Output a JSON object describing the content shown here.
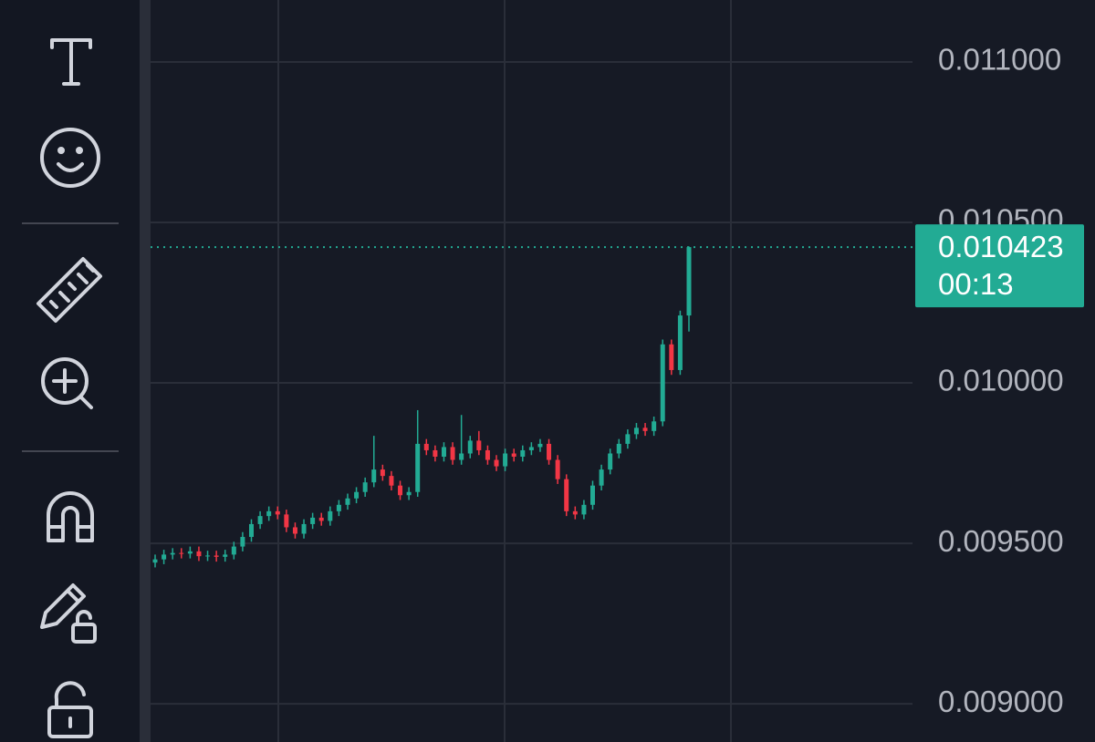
{
  "chart_data": {
    "type": "candlestick",
    "up_color": "#22ab94",
    "down_color": "#f23645",
    "grid": true,
    "ylim": [
      0.008881,
      0.011193
    ],
    "yticks": [
      {
        "value": 0.009,
        "label": "0.009000"
      },
      {
        "value": 0.0095,
        "label": "0.009500"
      },
      {
        "value": 0.01,
        "label": "0.010000"
      },
      {
        "value": 0.0105,
        "label": "0.010500"
      },
      {
        "value": 0.011,
        "label": "0.011000"
      }
    ],
    "last_price": 0.010423,
    "countdown": "00:13",
    "open": [
      0.00944,
      0.00945,
      0.009465,
      0.00947,
      0.009468,
      0.009475,
      0.00946,
      0.009462,
      0.009458,
      0.009465,
      0.00949,
      0.00952,
      0.00956,
      0.009585,
      0.0096,
      0.00959,
      0.00955,
      0.00953,
      0.00956,
      0.00958,
      0.00957,
      0.0096,
      0.00962,
      0.00964,
      0.00966,
      0.00969,
      0.00973,
      0.00971,
      0.00968,
      0.00965,
      0.00966,
      0.00981,
      0.00979,
      0.00977,
      0.0098,
      0.00976,
      0.00978,
      0.00982,
      0.00979,
      0.00976,
      0.00974,
      0.00978,
      0.00977,
      0.00979,
      0.0098,
      0.00981,
      0.00976,
      0.0097,
      0.0096,
      0.00959,
      0.00962,
      0.00968,
      0.00973,
      0.00978,
      0.00981,
      0.00984,
      0.00986,
      0.00985,
      0.00988,
      0.01012,
      0.01004,
      0.01021
    ],
    "high": [
      0.009465,
      0.00948,
      0.009485,
      0.009485,
      0.00949,
      0.00949,
      0.009477,
      0.009477,
      0.00948,
      0.009505,
      0.009535,
      0.009575,
      0.0096,
      0.009615,
      0.009615,
      0.009605,
      0.009565,
      0.009575,
      0.009595,
      0.009595,
      0.009615,
      0.009635,
      0.009655,
      0.009675,
      0.009705,
      0.009835,
      0.009745,
      0.009725,
      0.009695,
      0.009675,
      0.009915,
      0.009825,
      0.009805,
      0.009815,
      0.009815,
      0.0099,
      0.009835,
      0.00985,
      0.009805,
      0.009775,
      0.009795,
      0.009795,
      0.009805,
      0.009815,
      0.009825,
      0.009825,
      0.009775,
      0.009715,
      0.009615,
      0.009635,
      0.009695,
      0.009745,
      0.009795,
      0.009825,
      0.009855,
      0.009875,
      0.009875,
      0.009895,
      0.010135,
      0.010135,
      0.010225,
      0.010425
    ],
    "low": [
      0.009425,
      0.009435,
      0.00945,
      0.009453,
      0.009453,
      0.009445,
      0.009445,
      0.009443,
      0.009443,
      0.00945,
      0.009475,
      0.009505,
      0.009545,
      0.00957,
      0.009575,
      0.009535,
      0.009515,
      0.009515,
      0.009545,
      0.009555,
      0.009555,
      0.009585,
      0.009605,
      0.009625,
      0.009645,
      0.009675,
      0.009695,
      0.009665,
      0.009635,
      0.009635,
      0.009645,
      0.009775,
      0.009755,
      0.009755,
      0.009745,
      0.009745,
      0.009765,
      0.009775,
      0.009745,
      0.009725,
      0.009725,
      0.009755,
      0.009755,
      0.009775,
      0.009785,
      0.009745,
      0.009685,
      0.009585,
      0.009575,
      0.009575,
      0.009605,
      0.009665,
      0.009715,
      0.009765,
      0.009795,
      0.009825,
      0.009835,
      0.009835,
      0.009865,
      0.010025,
      0.010025,
      0.01016
    ],
    "close": [
      0.00945,
      0.009465,
      0.00947,
      0.009468,
      0.009475,
      0.00946,
      0.009462,
      0.009458,
      0.009465,
      0.00949,
      0.00952,
      0.00956,
      0.009585,
      0.0096,
      0.00959,
      0.00955,
      0.00953,
      0.00956,
      0.00958,
      0.00957,
      0.0096,
      0.00962,
      0.00964,
      0.00966,
      0.00969,
      0.00973,
      0.00971,
      0.00968,
      0.00965,
      0.00966,
      0.00981,
      0.00979,
      0.00977,
      0.0098,
      0.00976,
      0.00978,
      0.00982,
      0.00979,
      0.00976,
      0.00974,
      0.00978,
      0.00977,
      0.00979,
      0.0098,
      0.00981,
      0.00976,
      0.0097,
      0.0096,
      0.00959,
      0.00962,
      0.00968,
      0.00973,
      0.00978,
      0.00981,
      0.00984,
      0.00986,
      0.00985,
      0.00988,
      0.01012,
      0.01004,
      0.01021,
      0.010423
    ]
  }
}
